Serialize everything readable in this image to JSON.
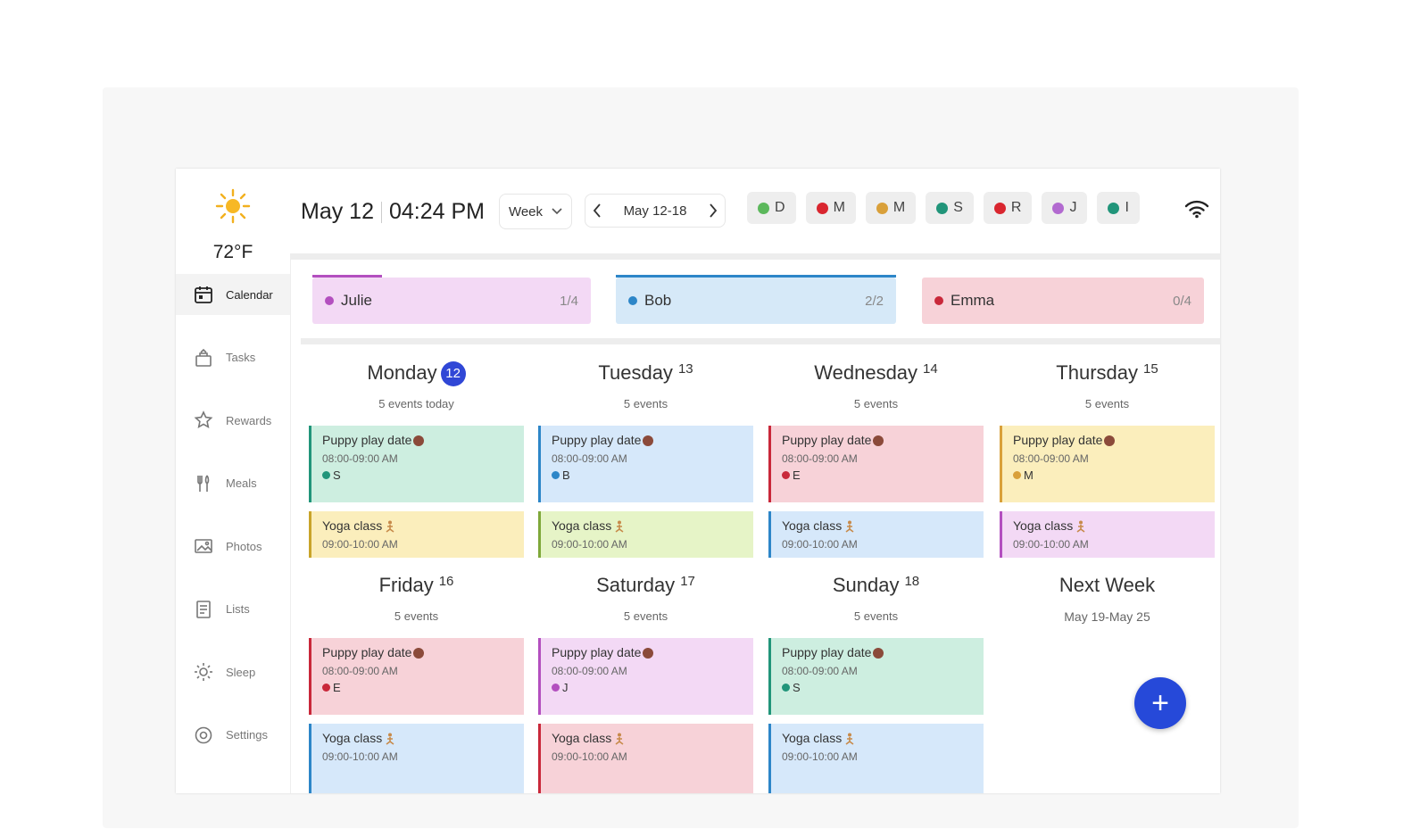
{
  "weather": {
    "temp": "72°F",
    "icon": "sun-icon"
  },
  "nav": [
    {
      "label": "Calendar",
      "icon": "calendar-icon",
      "active": true
    },
    {
      "label": "Tasks",
      "icon": "tasks-icon"
    },
    {
      "label": "Rewards",
      "icon": "rewards-icon"
    },
    {
      "label": "Meals",
      "icon": "meals-icon"
    },
    {
      "label": "Photos",
      "icon": "photos-icon"
    },
    {
      "label": "Lists",
      "icon": "lists-icon"
    },
    {
      "label": "Sleep",
      "icon": "sleep-icon"
    },
    {
      "label": "Settings",
      "icon": "settings-icon"
    }
  ],
  "header": {
    "date": "May 12",
    "time": "04:24 PM",
    "view": "Week",
    "range": "May 12-18"
  },
  "members": [
    {
      "initial": "D",
      "color": "#5cb85c"
    },
    {
      "initial": "M",
      "color": "#d9262f"
    },
    {
      "initial": "M",
      "color": "#d9a03a"
    },
    {
      "initial": "S",
      "color": "#21957a"
    },
    {
      "initial": "R",
      "color": "#d9262f"
    },
    {
      "initial": "J",
      "color": "#b26ad0"
    },
    {
      "initial": "I",
      "color": "#21957a"
    }
  ],
  "people": [
    {
      "name": "Julie",
      "count": "1/4",
      "color": "#b34fbf",
      "bg": "#f3d9f5",
      "progress": 0.25
    },
    {
      "name": "Bob",
      "count": "2/2",
      "color": "#2d86c8",
      "bg": "#d6e9f8",
      "progress": 1.0
    },
    {
      "name": "Emma",
      "count": "0/4",
      "color": "#c9283a",
      "bg": "#f7d2d8",
      "progress": 0
    }
  ],
  "days": [
    {
      "name": "Monday",
      "num": "12",
      "today": true,
      "sub": "5 events today",
      "events": [
        {
          "title": "Puppy play date",
          "time": "08:00-09:00 AM",
          "who": "S",
          "whoColor": "#21957a",
          "bg": "#cdeee0",
          "border": "#21957a"
        },
        {
          "title": "Yoga class",
          "time": "09:00-10:00 AM",
          "bg": "#fbeebc",
          "border": "#c9a42a"
        }
      ]
    },
    {
      "name": "Tuesday",
      "num": "13",
      "sub": "5 events",
      "events": [
        {
          "title": "Puppy play date",
          "time": "08:00-09:00 AM",
          "who": "B",
          "whoColor": "#2d86c8",
          "bg": "#d6e8fa",
          "border": "#2d86c8"
        },
        {
          "title": "Yoga class",
          "time": "09:00-10:00 AM",
          "bg": "#e6f4c7",
          "border": "#7fa83a"
        }
      ]
    },
    {
      "name": "Wednesday",
      "num": "14",
      "sub": "5 events",
      "events": [
        {
          "title": "Puppy play date",
          "time": "08:00-09:00 AM",
          "who": "E",
          "whoColor": "#c9283a",
          "bg": "#f7d2d8",
          "border": "#c9283a"
        },
        {
          "title": "Yoga class",
          "time": "09:00-10:00 AM",
          "bg": "#d6e8fa",
          "border": "#2d86c8"
        }
      ]
    },
    {
      "name": "Thursday",
      "num": "15",
      "sub": "5 events",
      "events": [
        {
          "title": "Puppy play date",
          "time": "08:00-09:00 AM",
          "who": "M",
          "whoColor": "#d9a03a",
          "bg": "#fbeebc",
          "border": "#d9a03a"
        },
        {
          "title": "Yoga class",
          "time": "09:00-10:00 AM",
          "bg": "#f3d9f5",
          "border": "#b34fbf"
        }
      ]
    },
    {
      "name": "Friday",
      "num": "16",
      "sub": "5 events",
      "events": [
        {
          "title": "Puppy play date",
          "time": "08:00-09:00 AM",
          "who": "E",
          "whoColor": "#c9283a",
          "bg": "#f7d2d8",
          "border": "#c9283a"
        },
        {
          "title": "Yoga class",
          "time": "09:00-10:00 AM",
          "bg": "#d6e8fa",
          "border": "#2d86c8"
        }
      ]
    },
    {
      "name": "Saturday",
      "num": "17",
      "sub": "5 events",
      "events": [
        {
          "title": "Puppy play date",
          "time": "08:00-09:00 AM",
          "who": "J",
          "whoColor": "#b34fbf",
          "bg": "#f3d9f5",
          "border": "#b34fbf"
        },
        {
          "title": "Yoga class",
          "time": "09:00-10:00 AM",
          "bg": "#f7d2d8",
          "border": "#c9283a"
        }
      ]
    },
    {
      "name": "Sunday",
      "num": "18",
      "sub": "5 events",
      "events": [
        {
          "title": "Puppy play date",
          "time": "08:00-09:00 AM",
          "who": "S",
          "whoColor": "#21957a",
          "bg": "#cdeee0",
          "border": "#21957a"
        },
        {
          "title": "Yoga class",
          "time": "09:00-10:00 AM",
          "bg": "#d6e8fa",
          "border": "#2d86c8"
        }
      ]
    }
  ],
  "next_week": {
    "title": "Next Week",
    "range": "May 19-May 25"
  },
  "fab": {
    "label": "+"
  }
}
